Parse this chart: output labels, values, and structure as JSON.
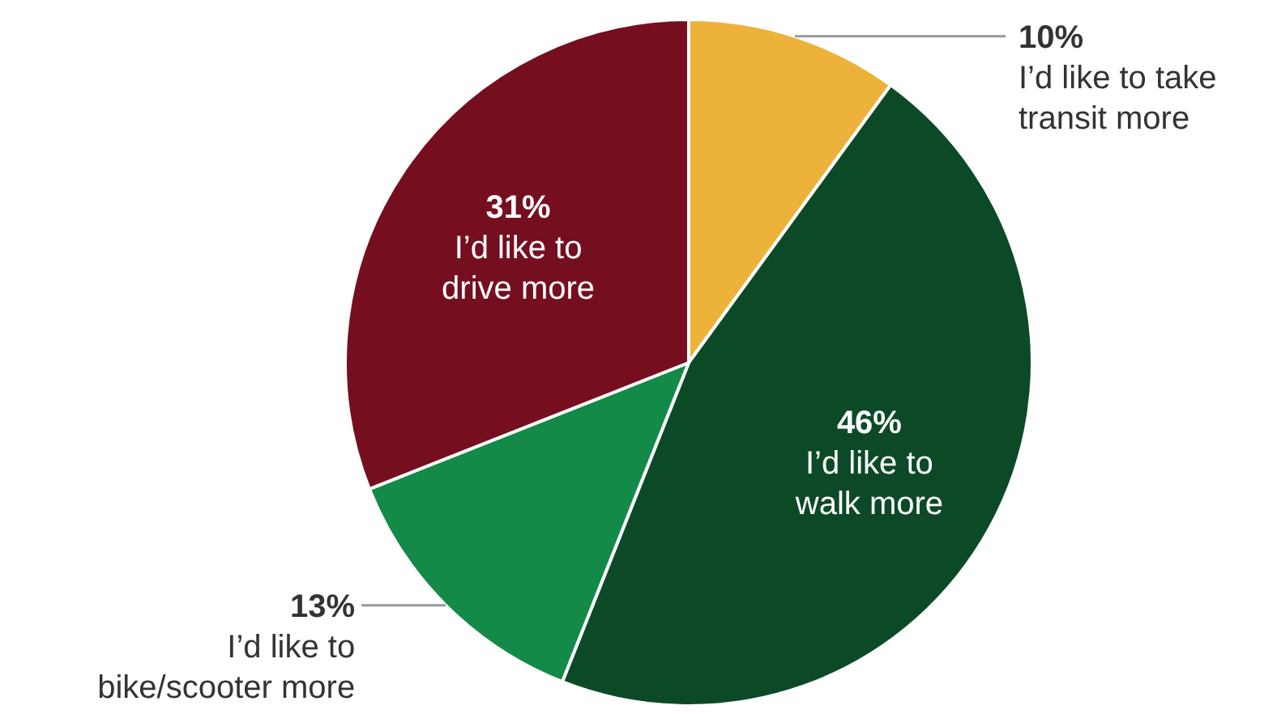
{
  "chart_data": {
    "type": "pie",
    "categories": [
      "I’d like to take\ntransit more",
      "I’d like to\nwalk more",
      "I’d like to\nbike/scooter more",
      "I’d like to\ndrive more"
    ],
    "values": [
      10,
      46,
      13,
      31
    ],
    "value_labels": [
      "10%",
      "46%",
      "13%",
      "31%"
    ],
    "colors": [
      "#ecb23a",
      "#0c4a27",
      "#138a47",
      "#750f1f"
    ]
  }
}
